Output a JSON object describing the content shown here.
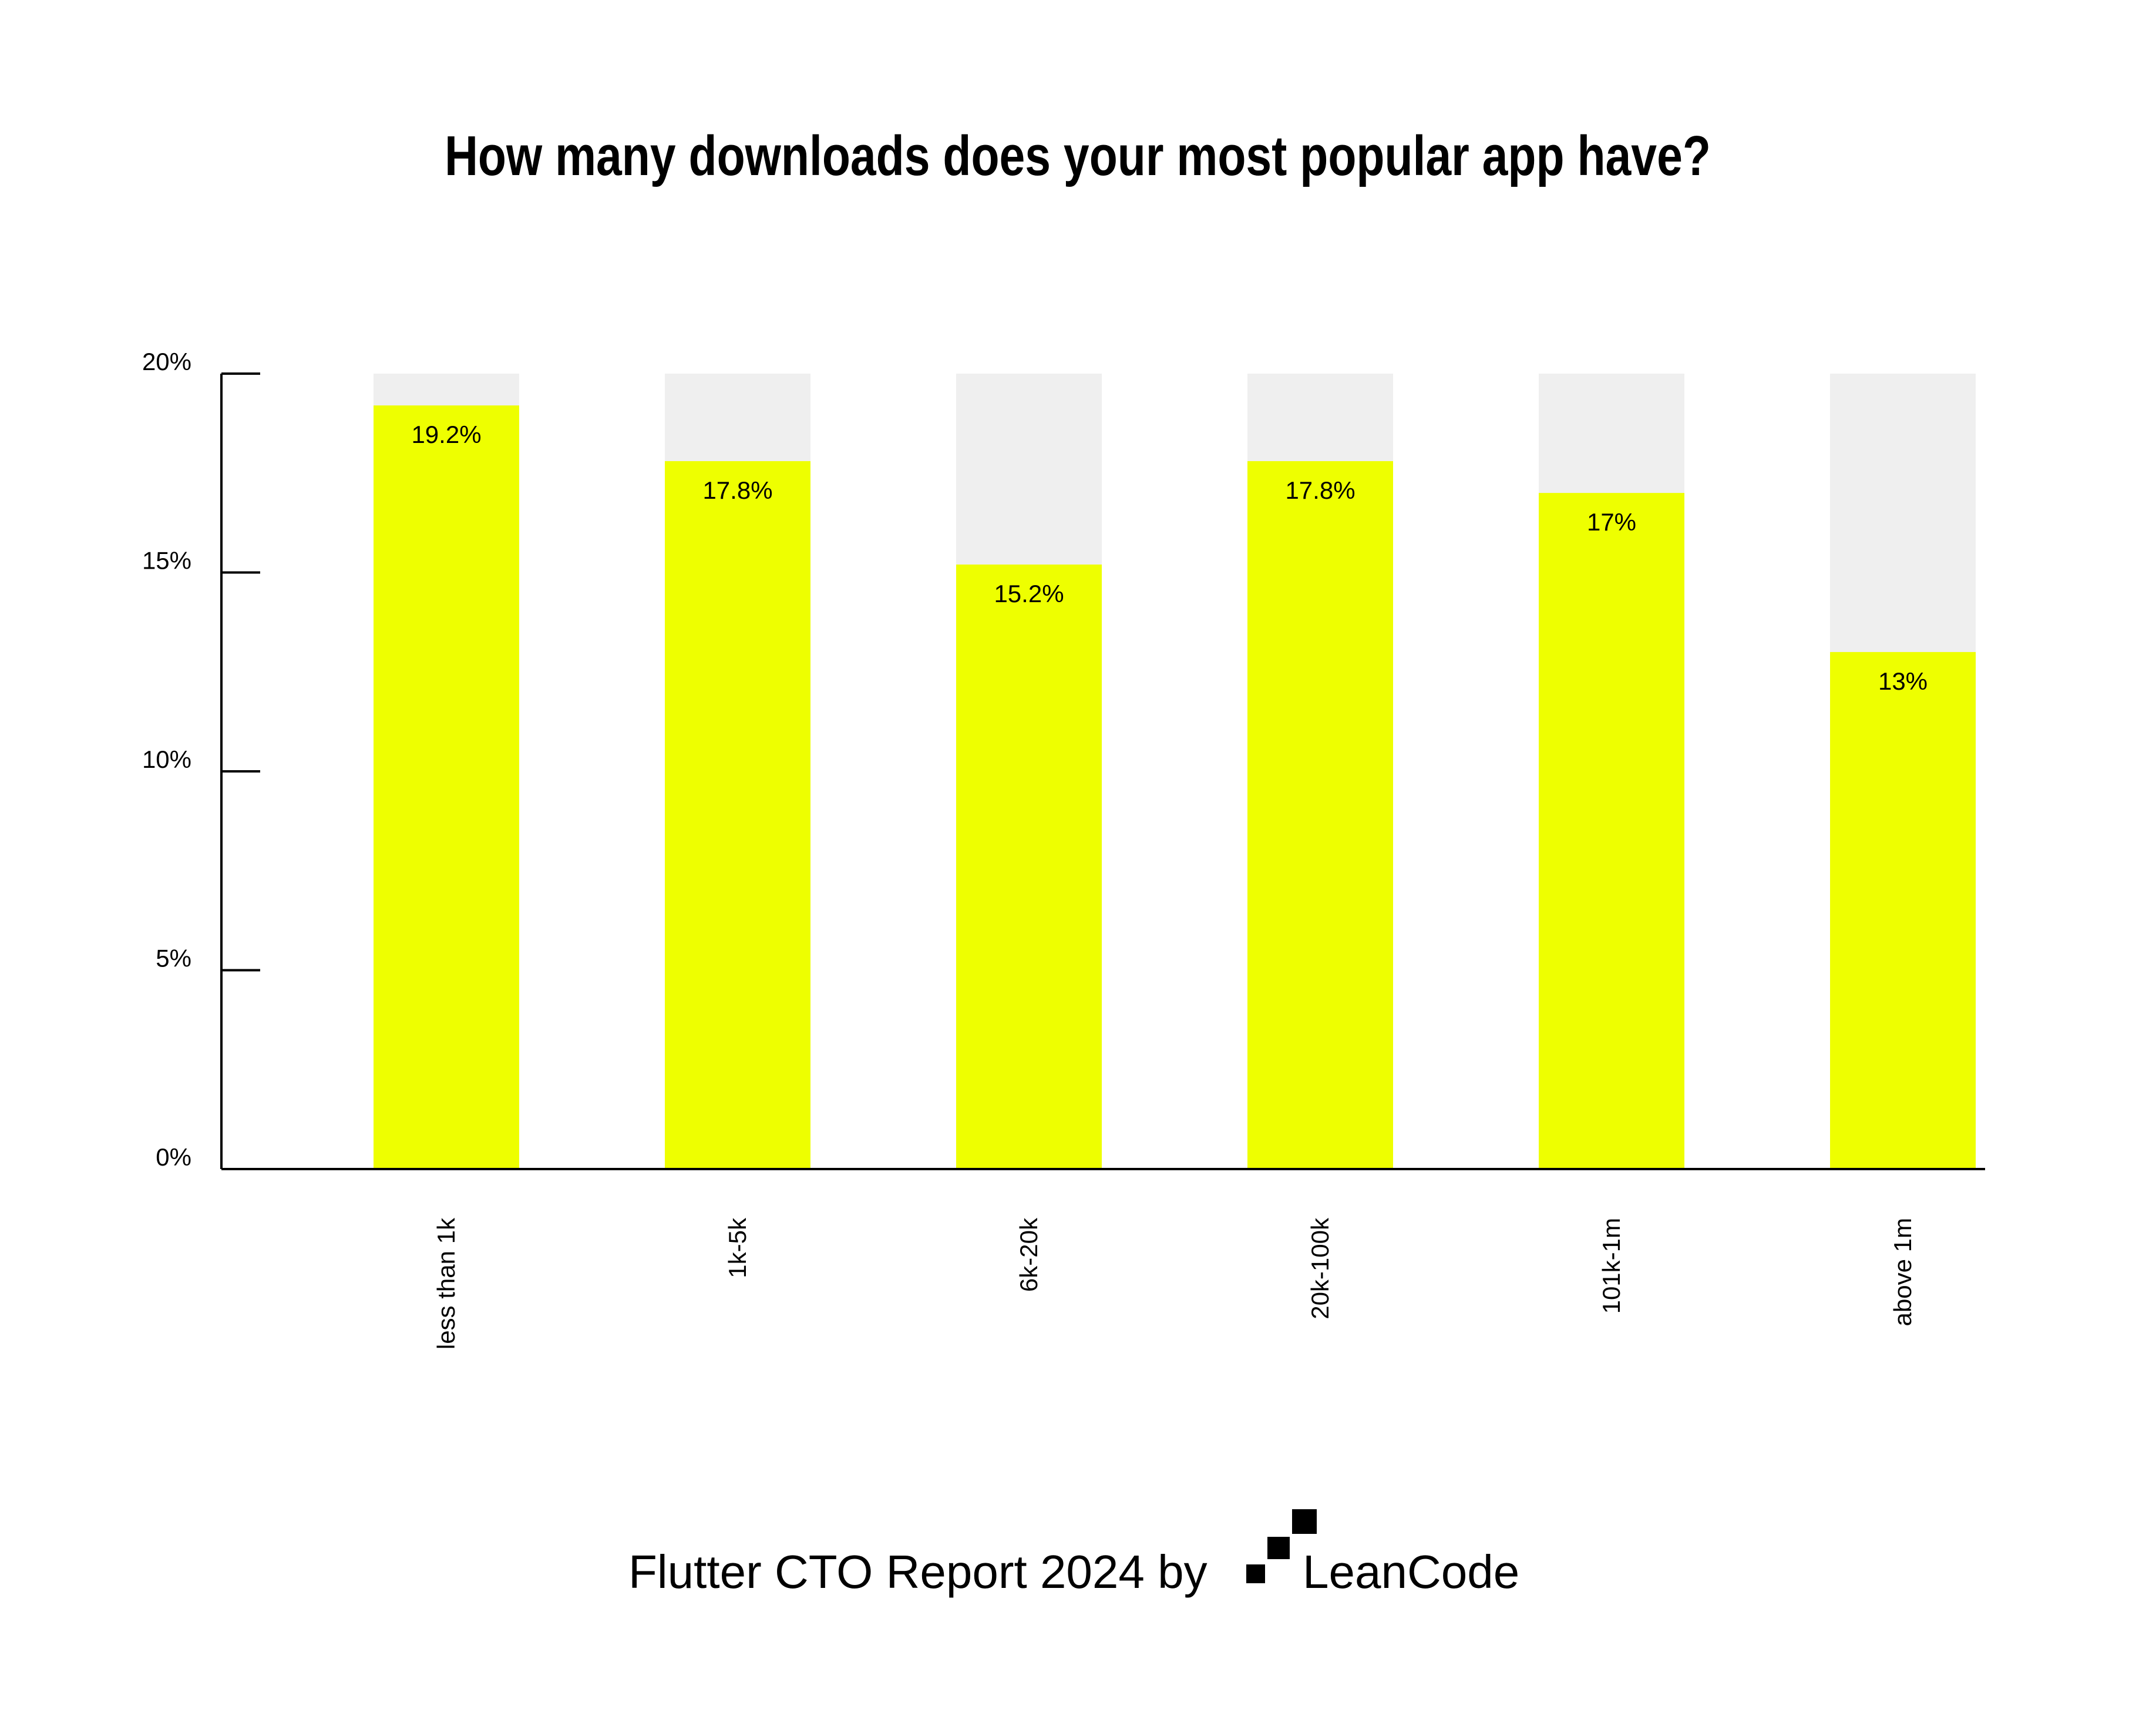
{
  "chart_data": {
    "type": "bar",
    "title": "How many downloads does your most popular app have?",
    "xlabel": "",
    "ylabel": "",
    "categories": [
      "less than 1k",
      "1k-5k",
      "6k-20k",
      "20k-100k",
      "101k-1m",
      "above 1m"
    ],
    "values": [
      19.2,
      17.8,
      15.2,
      17.8,
      17,
      13
    ],
    "value_labels": [
      "19.2%",
      "17.8%",
      "15.2%",
      "17.8%",
      "17%",
      "13%"
    ],
    "ylim": [
      0,
      20
    ],
    "yticks": [
      0,
      5,
      10,
      15,
      20
    ],
    "ytick_labels": [
      "0%",
      "5%",
      "10%",
      "15%",
      "20%"
    ],
    "grid": false,
    "colors": {
      "bar": "#EEFF00",
      "bar_background": "#EFEFEF",
      "axis": "#000000",
      "text": "#000000"
    }
  },
  "footer": {
    "text": "Flutter CTO Report 2024 by",
    "brand": "LeanCode",
    "logo_icon": "leancode-logo-icon"
  }
}
